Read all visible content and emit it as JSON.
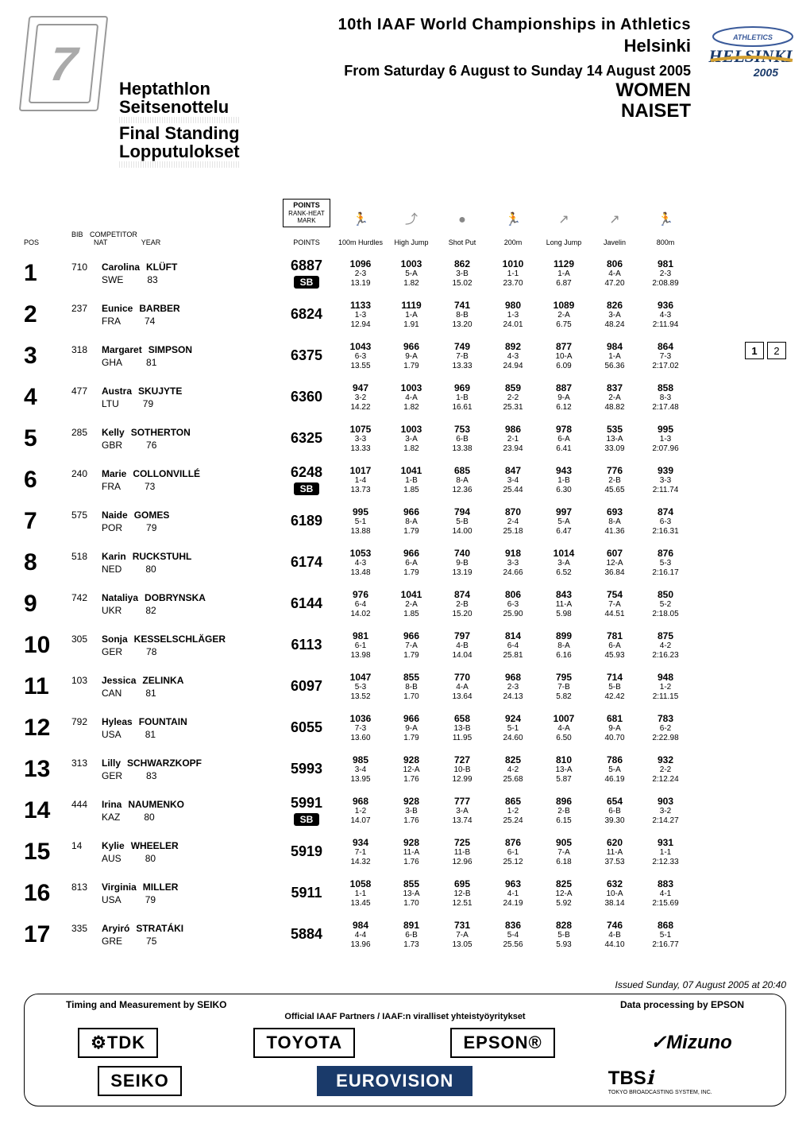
{
  "meta": {
    "championship_title": "10th IAAF World Championships in Athletics",
    "city": "Helsinki",
    "date_range": "From Saturday 6 August to Sunday 14 August 2005",
    "gender_en": "WOMEN",
    "gender_fi": "NAISET",
    "event_en": "Heptathlon",
    "event_fi": "Seitsenottelu",
    "stage_en": "Final Standing",
    "stage_fi": "Lopputulokset",
    "logo_number": "7",
    "helsinki_logo_top": "ATHLETICS",
    "helsinki_logo_main": "HELSINKI",
    "helsinki_logo_year": "2005",
    "page_current": "1",
    "page_total": "2"
  },
  "columns": {
    "pos": "POS",
    "bib": "BIB",
    "competitor": "COMPETITOR",
    "nat": "NAT",
    "year": "YEAR",
    "points_box_title": "POINTS",
    "points_box_sub1": "RANK-HEAT",
    "points_box_sub2": "MARK",
    "points": "POINTS",
    "events": [
      "100m Hurdles",
      "High Jump",
      "Shot Put",
      "200m",
      "Long Jump",
      "Javelin",
      "800m"
    ]
  },
  "event_icons": [
    "🏃",
    "⤴",
    "●",
    "🏃",
    "↗",
    "↗",
    "🏃"
  ],
  "athletes": [
    {
      "rank": "1",
      "bib": "710",
      "first": "Carolina",
      "last": "KLÜFT",
      "nat": "SWE",
      "year": "83",
      "points": "6887",
      "badge": "SB",
      "events": [
        {
          "pts": "1096",
          "rank": "2-3",
          "mark": "13.19"
        },
        {
          "pts": "1003",
          "rank": "5-A",
          "mark": "1.82"
        },
        {
          "pts": "862",
          "rank": "3-B",
          "mark": "15.02"
        },
        {
          "pts": "1010",
          "rank": "1-1",
          "mark": "23.70"
        },
        {
          "pts": "1129",
          "rank": "1-A",
          "mark": "6.87"
        },
        {
          "pts": "806",
          "rank": "4-A",
          "mark": "47.20"
        },
        {
          "pts": "981",
          "rank": "2-3",
          "mark": "2:08.89"
        }
      ]
    },
    {
      "rank": "2",
      "bib": "237",
      "first": "Eunice",
      "last": "BARBER",
      "nat": "FRA",
      "year": "74",
      "points": "6824",
      "badge": "",
      "events": [
        {
          "pts": "1133",
          "rank": "1-3",
          "mark": "12.94"
        },
        {
          "pts": "1119",
          "rank": "1-A",
          "mark": "1.91"
        },
        {
          "pts": "741",
          "rank": "8-B",
          "mark": "13.20"
        },
        {
          "pts": "980",
          "rank": "1-3",
          "mark": "24.01"
        },
        {
          "pts": "1089",
          "rank": "2-A",
          "mark": "6.75"
        },
        {
          "pts": "826",
          "rank": "3-A",
          "mark": "48.24"
        },
        {
          "pts": "936",
          "rank": "4-3",
          "mark": "2:11.94"
        }
      ]
    },
    {
      "rank": "3",
      "bib": "318",
      "first": "Margaret",
      "last": "SIMPSON",
      "nat": "GHA",
      "year": "81",
      "points": "6375",
      "badge": "",
      "events": [
        {
          "pts": "1043",
          "rank": "6-3",
          "mark": "13.55"
        },
        {
          "pts": "966",
          "rank": "9-A",
          "mark": "1.79"
        },
        {
          "pts": "749",
          "rank": "7-B",
          "mark": "13.33"
        },
        {
          "pts": "892",
          "rank": "4-3",
          "mark": "24.94"
        },
        {
          "pts": "877",
          "rank": "10-A",
          "mark": "6.09"
        },
        {
          "pts": "984",
          "rank": "1-A",
          "mark": "56.36"
        },
        {
          "pts": "864",
          "rank": "7-3",
          "mark": "2:17.02"
        }
      ]
    },
    {
      "rank": "4",
      "bib": "477",
      "first": "Austra",
      "last": "SKUJYTE",
      "nat": "LTU",
      "year": "79",
      "points": "6360",
      "badge": "",
      "events": [
        {
          "pts": "947",
          "rank": "3-2",
          "mark": "14.22"
        },
        {
          "pts": "1003",
          "rank": "4-A",
          "mark": "1.82"
        },
        {
          "pts": "969",
          "rank": "1-B",
          "mark": "16.61"
        },
        {
          "pts": "859",
          "rank": "2-2",
          "mark": "25.31"
        },
        {
          "pts": "887",
          "rank": "9-A",
          "mark": "6.12"
        },
        {
          "pts": "837",
          "rank": "2-A",
          "mark": "48.82"
        },
        {
          "pts": "858",
          "rank": "8-3",
          "mark": "2:17.48"
        }
      ]
    },
    {
      "rank": "5",
      "bib": "285",
      "first": "Kelly",
      "last": "SOTHERTON",
      "nat": "GBR",
      "year": "76",
      "points": "6325",
      "badge": "",
      "events": [
        {
          "pts": "1075",
          "rank": "3-3",
          "mark": "13.33"
        },
        {
          "pts": "1003",
          "rank": "3-A",
          "mark": "1.82"
        },
        {
          "pts": "753",
          "rank": "6-B",
          "mark": "13.38"
        },
        {
          "pts": "986",
          "rank": "2-1",
          "mark": "23.94"
        },
        {
          "pts": "978",
          "rank": "6-A",
          "mark": "6.41"
        },
        {
          "pts": "535",
          "rank": "13-A",
          "mark": "33.09"
        },
        {
          "pts": "995",
          "rank": "1-3",
          "mark": "2:07.96"
        }
      ]
    },
    {
      "rank": "6",
      "bib": "240",
      "first": "Marie",
      "last": "COLLONVILLÉ",
      "nat": "FRA",
      "year": "73",
      "points": "6248",
      "badge": "SB",
      "events": [
        {
          "pts": "1017",
          "rank": "1-4",
          "mark": "13.73"
        },
        {
          "pts": "1041",
          "rank": "1-B",
          "mark": "1.85"
        },
        {
          "pts": "685",
          "rank": "8-A",
          "mark": "12.36"
        },
        {
          "pts": "847",
          "rank": "3-4",
          "mark": "25.44"
        },
        {
          "pts": "943",
          "rank": "1-B",
          "mark": "6.30"
        },
        {
          "pts": "776",
          "rank": "2-B",
          "mark": "45.65"
        },
        {
          "pts": "939",
          "rank": "3-3",
          "mark": "2:11.74"
        }
      ]
    },
    {
      "rank": "7",
      "bib": "575",
      "first": "Naide",
      "last": "GOMES",
      "nat": "POR",
      "year": "79",
      "points": "6189",
      "badge": "",
      "events": [
        {
          "pts": "995",
          "rank": "5-1",
          "mark": "13.88"
        },
        {
          "pts": "966",
          "rank": "8-A",
          "mark": "1.79"
        },
        {
          "pts": "794",
          "rank": "5-B",
          "mark": "14.00"
        },
        {
          "pts": "870",
          "rank": "2-4",
          "mark": "25.18"
        },
        {
          "pts": "997",
          "rank": "5-A",
          "mark": "6.47"
        },
        {
          "pts": "693",
          "rank": "8-A",
          "mark": "41.36"
        },
        {
          "pts": "874",
          "rank": "6-3",
          "mark": "2:16.31"
        }
      ]
    },
    {
      "rank": "8",
      "bib": "518",
      "first": "Karin",
      "last": "RUCKSTUHL",
      "nat": "NED",
      "year": "80",
      "points": "6174",
      "badge": "",
      "events": [
        {
          "pts": "1053",
          "rank": "4-3",
          "mark": "13.48"
        },
        {
          "pts": "966",
          "rank": "6-A",
          "mark": "1.79"
        },
        {
          "pts": "740",
          "rank": "9-B",
          "mark": "13.19"
        },
        {
          "pts": "918",
          "rank": "3-3",
          "mark": "24.66"
        },
        {
          "pts": "1014",
          "rank": "3-A",
          "mark": "6.52"
        },
        {
          "pts": "607",
          "rank": "12-A",
          "mark": "36.84"
        },
        {
          "pts": "876",
          "rank": "5-3",
          "mark": "2:16.17"
        }
      ]
    },
    {
      "rank": "9",
      "bib": "742",
      "first": "Nataliya",
      "last": "DOBRYNSKA",
      "nat": "UKR",
      "year": "82",
      "points": "6144",
      "badge": "",
      "events": [
        {
          "pts": "976",
          "rank": "6-4",
          "mark": "14.02"
        },
        {
          "pts": "1041",
          "rank": "2-A",
          "mark": "1.85"
        },
        {
          "pts": "874",
          "rank": "2-B",
          "mark": "15.20"
        },
        {
          "pts": "806",
          "rank": "6-3",
          "mark": "25.90"
        },
        {
          "pts": "843",
          "rank": "11-A",
          "mark": "5.98"
        },
        {
          "pts": "754",
          "rank": "7-A",
          "mark": "44.51"
        },
        {
          "pts": "850",
          "rank": "5-2",
          "mark": "2:18.05"
        }
      ]
    },
    {
      "rank": "10",
      "bib": "305",
      "first": "Sonja",
      "last": "KESSELSCHLÄGER",
      "nat": "GER",
      "year": "78",
      "points": "6113",
      "badge": "",
      "events": [
        {
          "pts": "981",
          "rank": "6-1",
          "mark": "13.98"
        },
        {
          "pts": "966",
          "rank": "7-A",
          "mark": "1.79"
        },
        {
          "pts": "797",
          "rank": "4-B",
          "mark": "14.04"
        },
        {
          "pts": "814",
          "rank": "6-4",
          "mark": "25.81"
        },
        {
          "pts": "899",
          "rank": "8-A",
          "mark": "6.16"
        },
        {
          "pts": "781",
          "rank": "6-A",
          "mark": "45.93"
        },
        {
          "pts": "875",
          "rank": "4-2",
          "mark": "2:16.23"
        }
      ]
    },
    {
      "rank": "11",
      "bib": "103",
      "first": "Jessica",
      "last": "ZELINKA",
      "nat": "CAN",
      "year": "81",
      "points": "6097",
      "badge": "",
      "events": [
        {
          "pts": "1047",
          "rank": "5-3",
          "mark": "13.52"
        },
        {
          "pts": "855",
          "rank": "8-B",
          "mark": "1.70"
        },
        {
          "pts": "770",
          "rank": "4-A",
          "mark": "13.64"
        },
        {
          "pts": "968",
          "rank": "2-3",
          "mark": "24.13"
        },
        {
          "pts": "795",
          "rank": "7-B",
          "mark": "5.82"
        },
        {
          "pts": "714",
          "rank": "5-B",
          "mark": "42.42"
        },
        {
          "pts": "948",
          "rank": "1-2",
          "mark": "2:11.15"
        }
      ]
    },
    {
      "rank": "12",
      "bib": "792",
      "first": "Hyleas",
      "last": "FOUNTAIN",
      "nat": "USA",
      "year": "81",
      "points": "6055",
      "badge": "",
      "events": [
        {
          "pts": "1036",
          "rank": "7-3",
          "mark": "13.60"
        },
        {
          "pts": "966",
          "rank": "9-A",
          "mark": "1.79"
        },
        {
          "pts": "658",
          "rank": "13-B",
          "mark": "11.95"
        },
        {
          "pts": "924",
          "rank": "5-1",
          "mark": "24.60"
        },
        {
          "pts": "1007",
          "rank": "4-A",
          "mark": "6.50"
        },
        {
          "pts": "681",
          "rank": "9-A",
          "mark": "40.70"
        },
        {
          "pts": "783",
          "rank": "6-2",
          "mark": "2:22.98"
        }
      ]
    },
    {
      "rank": "13",
      "bib": "313",
      "first": "Lilly",
      "last": "SCHWARZKOPF",
      "nat": "GER",
      "year": "83",
      "points": "5993",
      "badge": "",
      "events": [
        {
          "pts": "985",
          "rank": "3-4",
          "mark": "13.95"
        },
        {
          "pts": "928",
          "rank": "12-A",
          "mark": "1.76"
        },
        {
          "pts": "727",
          "rank": "10-B",
          "mark": "12.99"
        },
        {
          "pts": "825",
          "rank": "4-2",
          "mark": "25.68"
        },
        {
          "pts": "810",
          "rank": "13-A",
          "mark": "5.87"
        },
        {
          "pts": "786",
          "rank": "5-A",
          "mark": "46.19"
        },
        {
          "pts": "932",
          "rank": "2-2",
          "mark": "2:12.24"
        }
      ]
    },
    {
      "rank": "14",
      "bib": "444",
      "first": "Irina",
      "last": "NAUMENKO",
      "nat": "KAZ",
      "year": "80",
      "points": "5991",
      "badge": "SB",
      "events": [
        {
          "pts": "968",
          "rank": "1-2",
          "mark": "14.07"
        },
        {
          "pts": "928",
          "rank": "3-B",
          "mark": "1.76"
        },
        {
          "pts": "777",
          "rank": "3-A",
          "mark": "13.74"
        },
        {
          "pts": "865",
          "rank": "1-2",
          "mark": "25.24"
        },
        {
          "pts": "896",
          "rank": "2-B",
          "mark": "6.15"
        },
        {
          "pts": "654",
          "rank": "6-B",
          "mark": "39.30"
        },
        {
          "pts": "903",
          "rank": "3-2",
          "mark": "2:14.27"
        }
      ]
    },
    {
      "rank": "15",
      "bib": "14",
      "first": "Kylie",
      "last": "WHEELER",
      "nat": "AUS",
      "year": "80",
      "points": "5919",
      "badge": "",
      "events": [
        {
          "pts": "934",
          "rank": "7-1",
          "mark": "14.32"
        },
        {
          "pts": "928",
          "rank": "11-A",
          "mark": "1.76"
        },
        {
          "pts": "725",
          "rank": "11-B",
          "mark": "12.96"
        },
        {
          "pts": "876",
          "rank": "6-1",
          "mark": "25.12"
        },
        {
          "pts": "905",
          "rank": "7-A",
          "mark": "6.18"
        },
        {
          "pts": "620",
          "rank": "11-A",
          "mark": "37.53"
        },
        {
          "pts": "931",
          "rank": "1-1",
          "mark": "2:12.33"
        }
      ]
    },
    {
      "rank": "16",
      "bib": "813",
      "first": "Virginia",
      "last": "MILLER",
      "nat": "USA",
      "year": "79",
      "points": "5911",
      "badge": "",
      "events": [
        {
          "pts": "1058",
          "rank": "1-1",
          "mark": "13.45"
        },
        {
          "pts": "855",
          "rank": "13-A",
          "mark": "1.70"
        },
        {
          "pts": "695",
          "rank": "12-B",
          "mark": "12.51"
        },
        {
          "pts": "963",
          "rank": "4-1",
          "mark": "24.19"
        },
        {
          "pts": "825",
          "rank": "12-A",
          "mark": "5.92"
        },
        {
          "pts": "632",
          "rank": "10-A",
          "mark": "38.14"
        },
        {
          "pts": "883",
          "rank": "4-1",
          "mark": "2:15.69"
        }
      ]
    },
    {
      "rank": "17",
      "bib": "335",
      "first": "Aryiró",
      "last": "STRATÁKI",
      "nat": "GRE",
      "year": "75",
      "points": "5884",
      "badge": "",
      "events": [
        {
          "pts": "984",
          "rank": "4-4",
          "mark": "13.96"
        },
        {
          "pts": "891",
          "rank": "6-B",
          "mark": "1.73"
        },
        {
          "pts": "731",
          "rank": "7-A",
          "mark": "13.05"
        },
        {
          "pts": "836",
          "rank": "5-4",
          "mark": "25.56"
        },
        {
          "pts": "828",
          "rank": "5-B",
          "mark": "5.93"
        },
        {
          "pts": "746",
          "rank": "4-B",
          "mark": "44.10"
        },
        {
          "pts": "868",
          "rank": "5-1",
          "mark": "2:16.77"
        }
      ]
    }
  ],
  "footer": {
    "timestamp": "Issued Sunday, 07 August 2005 at 20:40",
    "timing_by": "Timing and Measurement by SEIKO",
    "data_by": "Data processing by EPSON",
    "partners_line": "Official IAAF Partners / IAAF:n viralliset yhteistyöyritykset",
    "sponsors_row1": [
      "⚙TDK",
      "TOYOTA",
      "EPSON®",
      "✓Mizuno"
    ],
    "sponsors_row2": [
      "SEIKO",
      "EUROVISION",
      "TBS"
    ],
    "tbs_sub": "TOKYO BROADCASTING SYSTEM, INC."
  },
  "colors": {
    "text": "#000000",
    "bg": "#ffffff",
    "badge_bg": "#000000",
    "badge_fg": "#ffffff",
    "eurovision_bg": "#1a3a6a",
    "logo_grey": "#999999"
  },
  "typography": {
    "rank_fontsize_pt": 22,
    "title_fontsize_pt": 15,
    "body_fontsize_pt": 9,
    "points_fontsize_pt": 13
  }
}
